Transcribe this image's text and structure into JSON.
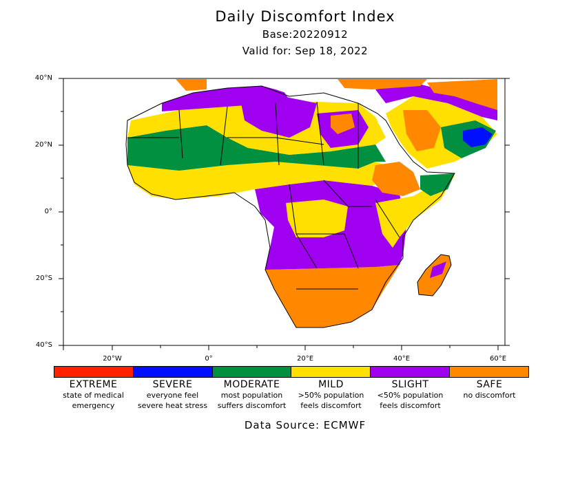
{
  "header": {
    "title": "Daily Discomfort Index",
    "base": "Base:20220912",
    "valid": "Valid for: Sep 18, 2022"
  },
  "axes": {
    "lat_labels": [
      "40°N",
      "20°N",
      "0°",
      "20°S",
      "40°S"
    ],
    "lon_labels": [
      "20°W",
      "0°",
      "20°E",
      "40°E",
      "60°E"
    ]
  },
  "legend": [
    {
      "name": "EXTREME",
      "desc1": "state of medical",
      "desc2": "emergency",
      "color": "#ff2000"
    },
    {
      "name": "SEVERE",
      "desc1": "everyone feel",
      "desc2": "severe heat stress",
      "color": "#0010ff"
    },
    {
      "name": "MODERATE",
      "desc1": "most population",
      "desc2": "suffers discomfort",
      "color": "#009040"
    },
    {
      "name": "MILD",
      "desc1": ">50% population",
      "desc2": "feels discomfort",
      "color": "#ffe000"
    },
    {
      "name": "SLIGHT",
      "desc1": "<50% population",
      "desc2": "feels discomfort",
      "color": "#a000f0"
    },
    {
      "name": "SAFE",
      "desc1": "no discomfort",
      "desc2": "",
      "color": "#ff8800"
    }
  ],
  "footer": {
    "source": "Data Source: ECMWF"
  }
}
